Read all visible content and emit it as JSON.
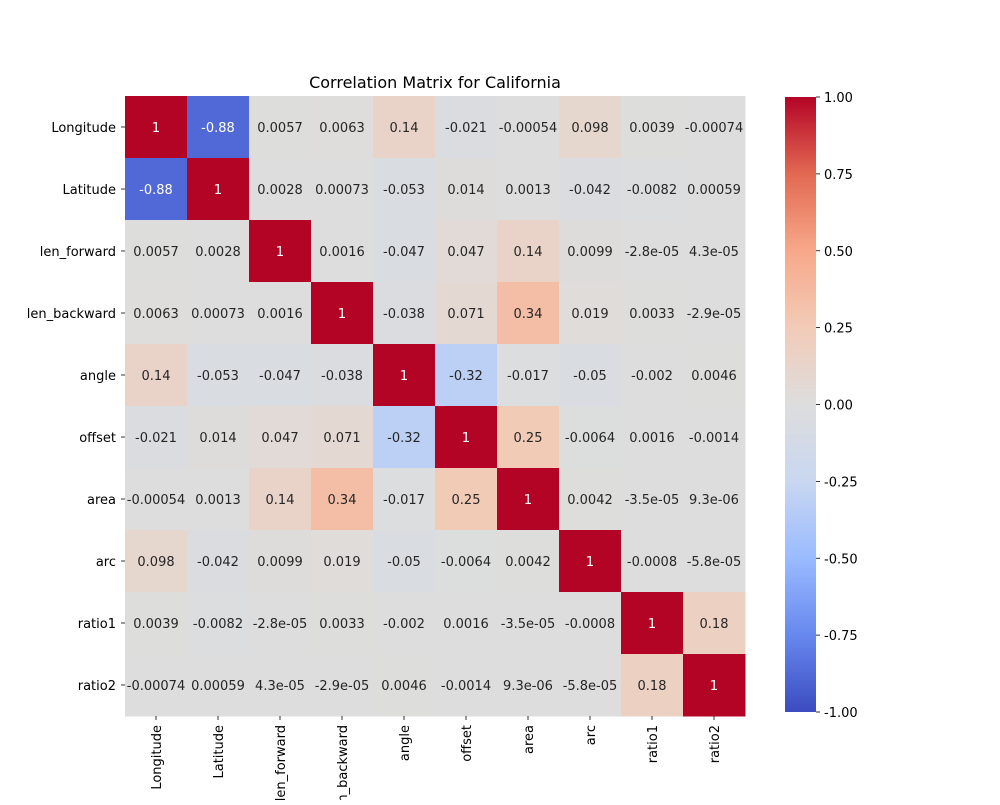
{
  "chart_data": {
    "type": "heatmap",
    "title": "Correlation Matrix for California",
    "xlabel": "",
    "ylabel": "",
    "labels": [
      "Longitude",
      "Latitude",
      "len_forward",
      "len_backward",
      "angle",
      "offset",
      "area",
      "arc",
      "ratio1",
      "ratio2"
    ],
    "x_tick_labels": [
      "Longitude",
      "Latitude",
      "len_forward",
      "len_backward",
      "angle",
      "offset",
      "area",
      "arc",
      "ratio1",
      "ratio2"
    ],
    "values": [
      [
        1,
        -0.88,
        0.0057,
        0.0063,
        0.14,
        -0.021,
        -0.00054,
        0.098,
        0.0039,
        -0.00074
      ],
      [
        -0.88,
        1,
        0.0028,
        0.00073,
        -0.053,
        0.014,
        0.0013,
        -0.042,
        -0.0082,
        0.00059
      ],
      [
        0.0057,
        0.0028,
        1,
        0.0016,
        -0.047,
        0.047,
        0.14,
        0.0099,
        -2.8e-05,
        4.3e-05
      ],
      [
        0.0063,
        0.00073,
        0.0016,
        1,
        -0.038,
        0.071,
        0.34,
        0.019,
        0.0033,
        -2.9e-05
      ],
      [
        0.14,
        -0.053,
        -0.047,
        -0.038,
        1,
        -0.32,
        -0.017,
        -0.05,
        -0.002,
        0.0046
      ],
      [
        -0.021,
        0.014,
        0.047,
        0.071,
        -0.32,
        1,
        0.25,
        -0.0064,
        0.0016,
        -0.0014
      ],
      [
        -0.00054,
        0.0013,
        0.14,
        0.34,
        -0.017,
        0.25,
        1,
        0.0042,
        -3.5e-05,
        9.3e-06
      ],
      [
        0.098,
        -0.042,
        0.0099,
        0.019,
        -0.05,
        -0.0064,
        0.0042,
        1,
        -0.0008,
        -5.8e-05
      ],
      [
        0.0039,
        -0.0082,
        -2.8e-05,
        0.0033,
        -0.002,
        0.0016,
        -3.5e-05,
        -0.0008,
        1,
        0.18
      ],
      [
        -0.00074,
        0.00059,
        4.3e-05,
        -2.9e-05,
        0.0046,
        -0.0014,
        9.3e-06,
        -5.8e-05,
        0.18,
        1
      ]
    ],
    "annotations": [
      [
        "1",
        "-0.88",
        "0.0057",
        "0.0063",
        "0.14",
        "-0.021",
        "-0.00054",
        "0.098",
        "0.0039",
        "-0.00074"
      ],
      [
        "-0.88",
        "1",
        "0.0028",
        "0.00073",
        "-0.053",
        "0.014",
        "0.0013",
        "-0.042",
        "-0.0082",
        "0.00059"
      ],
      [
        "0.0057",
        "0.0028",
        "1",
        "0.0016",
        "-0.047",
        "0.047",
        "0.14",
        "0.0099",
        "-2.8e-05",
        "4.3e-05"
      ],
      [
        "0.0063",
        "0.00073",
        "0.0016",
        "1",
        "-0.038",
        "0.071",
        "0.34",
        "0.019",
        "0.0033",
        "-2.9e-05"
      ],
      [
        "0.14",
        "-0.053",
        "-0.047",
        "-0.038",
        "1",
        "-0.32",
        "-0.017",
        "-0.05",
        "-0.002",
        "0.0046"
      ],
      [
        "-0.021",
        "0.014",
        "0.047",
        "0.071",
        "-0.32",
        "1",
        "0.25",
        "-0.0064",
        "0.0016",
        "-0.0014"
      ],
      [
        "-0.00054",
        "0.0013",
        "0.14",
        "0.34",
        "-0.017",
        "0.25",
        "1",
        "0.0042",
        "-3.5e-05",
        "9.3e-06"
      ],
      [
        "0.098",
        "-0.042",
        "0.0099",
        "0.019",
        "-0.05",
        "-0.0064",
        "0.0042",
        "1",
        "-0.0008",
        "-5.8e-05"
      ],
      [
        "0.0039",
        "-0.0082",
        "-2.8e-05",
        "0.0033",
        "-0.002",
        "0.0016",
        "-3.5e-05",
        "-0.0008",
        "1",
        "0.18"
      ],
      [
        "-0.00074",
        "0.00059",
        "4.3e-05",
        "-2.9e-05",
        "0.0046",
        "-0.0014",
        "9.3e-06",
        "-5.8e-05",
        "0.18",
        "1"
      ]
    ],
    "colormap": "coolwarm",
    "colormap_stops": [
      "#3b4cc0",
      "#6788ee",
      "#9abbff",
      "#c9d7f0",
      "#dddddd",
      "#f2cbb7",
      "#f7a889",
      "#e26952",
      "#b40426"
    ],
    "vmin": -1,
    "vmax": 1,
    "colorbar_ticks": [
      "1.00",
      "0.75",
      "0.50",
      "0.25",
      "0.00",
      "-0.25",
      "-0.50",
      "-0.75",
      "-1.00"
    ],
    "colorbar_tick_values": [
      1,
      0.75,
      0.5,
      0.25,
      0,
      -0.25,
      -0.5,
      -0.75,
      -1
    ],
    "grid": false,
    "legend": "colorbar-right"
  }
}
